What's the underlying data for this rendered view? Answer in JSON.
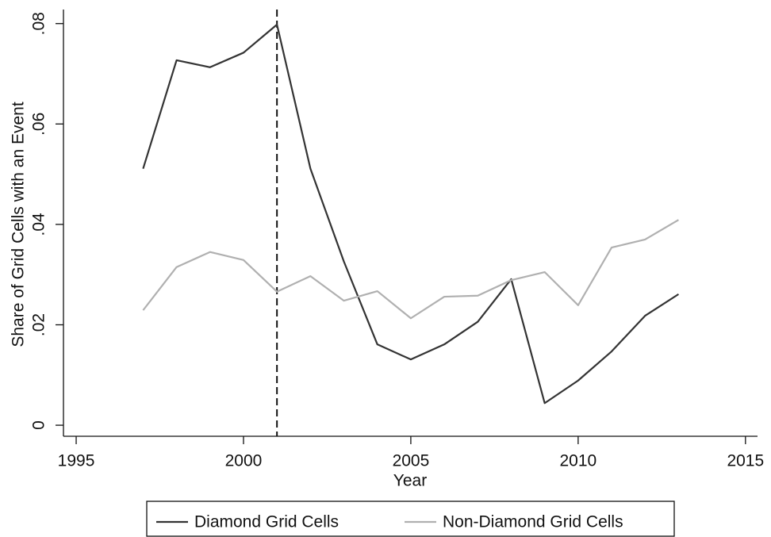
{
  "chart_data": {
    "type": "line",
    "x_label": "Year",
    "y_label": "Share of Grid Cells with an Event",
    "x": [
      1997,
      1998,
      1999,
      2000,
      2001,
      2002,
      2003,
      2004,
      2005,
      2006,
      2007,
      2008,
      2009,
      2010,
      2011,
      2012,
      2013
    ],
    "series": [
      {
        "name": "Diamond Grid Cells",
        "color": "#333333",
        "values": [
          0.0511,
          0.0727,
          0.0713,
          0.0742,
          0.0798,
          0.0511,
          0.0326,
          0.0161,
          0.0131,
          0.0161,
          0.0206,
          0.0291,
          0.0044,
          0.0089,
          0.0147,
          0.0218,
          0.0261
        ]
      },
      {
        "name": "Non-Diamond Grid Cells",
        "color": "#b0b0b0",
        "values": [
          0.0229,
          0.0315,
          0.0345,
          0.0329,
          0.0266,
          0.0297,
          0.0248,
          0.0267,
          0.0213,
          0.0256,
          0.0258,
          0.0289,
          0.0305,
          0.0239,
          0.0354,
          0.037,
          0.0409
        ]
      }
    ],
    "reference_line": 2001,
    "xlim": [
      1994.62,
      2015.36
    ],
    "xticks": [
      1995,
      2000,
      2005,
      2010,
      2015
    ],
    "ylim": [
      -0.0022,
      0.0828
    ],
    "yticks": [
      0,
      {
        "value": 0.02,
        "label": ".02"
      },
      {
        "value": 0.04,
        "label": ".04"
      },
      {
        "value": 0.06,
        "label": ".06"
      },
      {
        "value": 0.08,
        "label": ".08"
      }
    ],
    "grid": false,
    "legend": "bottom"
  }
}
